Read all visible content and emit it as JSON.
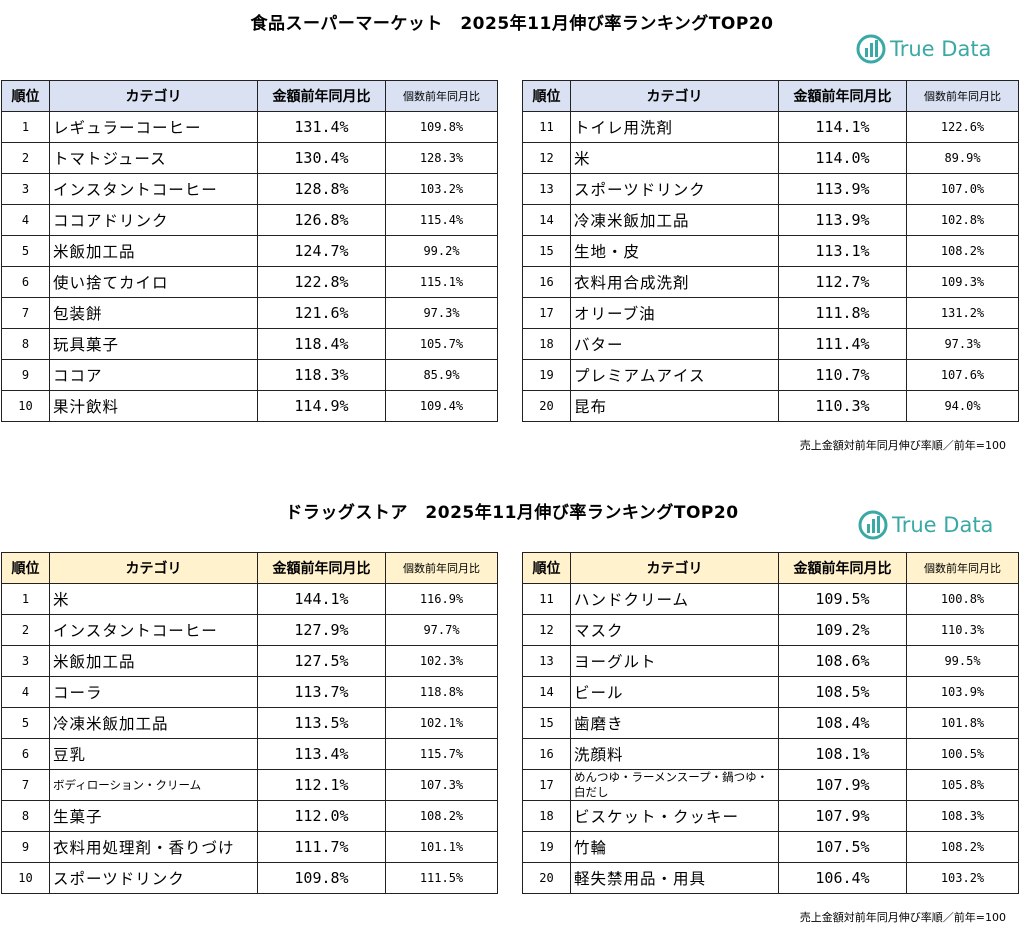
{
  "supermarket": {
    "title": "食品スーパーマーケット　2025年11月伸び率ランキングTOP20",
    "logo_text": "True Data",
    "headers": {
      "rank": "順位",
      "category": "カテゴリ",
      "amount": "金額前年同月比",
      "count": "個数前年同月比"
    },
    "left": [
      {
        "rank": "1",
        "category": "レギュラーコーヒー",
        "amount": "131.4%",
        "count": "109.8%"
      },
      {
        "rank": "2",
        "category": "トマトジュース",
        "amount": "130.4%",
        "count": "128.3%"
      },
      {
        "rank": "3",
        "category": "インスタントコーヒー",
        "amount": "128.8%",
        "count": "103.2%"
      },
      {
        "rank": "4",
        "category": "ココアドリンク",
        "amount": "126.8%",
        "count": "115.4%"
      },
      {
        "rank": "5",
        "category": "米飯加工品",
        "amount": "124.7%",
        "count": "99.2%"
      },
      {
        "rank": "6",
        "category": "使い捨てカイロ",
        "amount": "122.8%",
        "count": "115.1%"
      },
      {
        "rank": "7",
        "category": "包装餅",
        "amount": "121.6%",
        "count": "97.3%"
      },
      {
        "rank": "8",
        "category": "玩具菓子",
        "amount": "118.4%",
        "count": "105.7%"
      },
      {
        "rank": "9",
        "category": "ココア",
        "amount": "118.3%",
        "count": "85.9%"
      },
      {
        "rank": "10",
        "category": "果汁飲料",
        "amount": "114.9%",
        "count": "109.4%"
      }
    ],
    "right": [
      {
        "rank": "11",
        "category": "トイレ用洗剤",
        "amount": "114.1%",
        "count": "122.6%"
      },
      {
        "rank": "12",
        "category": "米",
        "amount": "114.0%",
        "count": "89.9%"
      },
      {
        "rank": "13",
        "category": "スポーツドリンク",
        "amount": "113.9%",
        "count": "107.0%"
      },
      {
        "rank": "14",
        "category": "冷凍米飯加工品",
        "amount": "113.9%",
        "count": "102.8%"
      },
      {
        "rank": "15",
        "category": "生地・皮",
        "amount": "113.1%",
        "count": "108.2%"
      },
      {
        "rank": "16",
        "category": "衣料用合成洗剤",
        "amount": "112.7%",
        "count": "109.3%"
      },
      {
        "rank": "17",
        "category": "オリーブ油",
        "amount": "111.8%",
        "count": "131.2%"
      },
      {
        "rank": "18",
        "category": "バター",
        "amount": "111.4%",
        "count": "97.3%"
      },
      {
        "rank": "19",
        "category": "プレミアムアイス",
        "amount": "110.7%",
        "count": "107.6%"
      },
      {
        "rank": "20",
        "category": "昆布",
        "amount": "110.3%",
        "count": "94.0%"
      }
    ],
    "note": "売上金額対前年同月伸び率順／前年=100"
  },
  "drugstore": {
    "title": "ドラッグストア　2025年11月伸び率ランキングTOP20",
    "logo_text": "True Data",
    "headers": {
      "rank": "順位",
      "category": "カテゴリ",
      "amount": "金額前年同月比",
      "count": "個数前年同月比"
    },
    "left": [
      {
        "rank": "1",
        "category": "米",
        "amount": "144.1%",
        "count": "116.9%"
      },
      {
        "rank": "2",
        "category": "インスタントコーヒー",
        "amount": "127.9%",
        "count": "97.7%"
      },
      {
        "rank": "3",
        "category": "米飯加工品",
        "amount": "127.5%",
        "count": "102.3%"
      },
      {
        "rank": "4",
        "category": "コーラ",
        "amount": "113.7%",
        "count": "118.8%"
      },
      {
        "rank": "5",
        "category": "冷凍米飯加工品",
        "amount": "113.5%",
        "count": "102.1%"
      },
      {
        "rank": "6",
        "category": "豆乳",
        "amount": "113.4%",
        "count": "115.7%"
      },
      {
        "rank": "7",
        "category": "ボディローション・クリーム",
        "amount": "112.1%",
        "count": "107.3%"
      },
      {
        "rank": "8",
        "category": "生菓子",
        "amount": "112.0%",
        "count": "108.2%"
      },
      {
        "rank": "9",
        "category": "衣料用処理剤・香りづけ",
        "amount": "111.7%",
        "count": "101.1%"
      },
      {
        "rank": "10",
        "category": "スポーツドリンク",
        "amount": "109.8%",
        "count": "111.5%"
      }
    ],
    "right": [
      {
        "rank": "11",
        "category": "ハンドクリーム",
        "amount": "109.5%",
        "count": "100.8%"
      },
      {
        "rank": "12",
        "category": "マスク",
        "amount": "109.2%",
        "count": "110.3%"
      },
      {
        "rank": "13",
        "category": "ヨーグルト",
        "amount": "108.6%",
        "count": "99.5%"
      },
      {
        "rank": "14",
        "category": "ビール",
        "amount": "108.5%",
        "count": "103.9%"
      },
      {
        "rank": "15",
        "category": "歯磨き",
        "amount": "108.4%",
        "count": "101.8%"
      },
      {
        "rank": "16",
        "category": "洗顔料",
        "amount": "108.1%",
        "count": "100.5%"
      },
      {
        "rank": "17",
        "category": "めんつゆ・ラーメンスープ・鍋つゆ・白だし",
        "amount": "107.9%",
        "count": "105.8%"
      },
      {
        "rank": "18",
        "category": "ビスケット・クッキー",
        "amount": "107.9%",
        "count": "108.3%"
      },
      {
        "rank": "19",
        "category": "竹輪",
        "amount": "107.5%",
        "count": "108.2%"
      },
      {
        "rank": "20",
        "category": "軽失禁用品・用具",
        "amount": "106.4%",
        "count": "103.2%"
      }
    ],
    "note": "売上金額対前年同月伸び率順／前年=100"
  },
  "colors": {
    "logo": "#3aa9a6",
    "sm_header": "#d9e1f2",
    "dg_header": "#fff2cc"
  },
  "icons": {
    "logo": "bar-chart-circle-icon"
  }
}
